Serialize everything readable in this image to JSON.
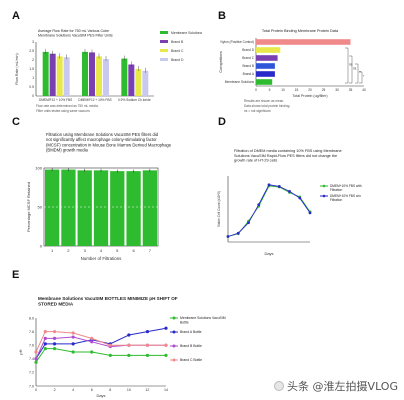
{
  "panels": {
    "A": {
      "label": "A"
    },
    "B": {
      "label": "B"
    },
    "C": {
      "label": "C"
    },
    "D": {
      "label": "D"
    },
    "E": {
      "label": "E"
    }
  },
  "watermark": {
    "text": "头条 @淮左拍摄VLOG"
  },
  "chart_data": [
    {
      "id": "A",
      "type": "bar",
      "title": "Average Flow Rate for 750 mL Various Cube",
      "subtitle": "Membrane Solutions VacuSIM PES Filter Units",
      "ylabel": "Flow Rate (mL/min)",
      "ylim": [
        0,
        3
      ],
      "yticks": [
        "0",
        "0.5",
        "1",
        "1.5",
        "2",
        "2.5",
        "3"
      ],
      "categories": [
        "DMEM/F12 + 10% FBS",
        "DMEM/F12 + 10% FBS",
        "0.9% Sodium Ch.loride"
      ],
      "series": [
        {
          "name": "Membrane Solutions",
          "color": "#2fbb2f",
          "values": [
            2.45,
            2.45,
            2.08
          ]
        },
        {
          "name": "Brand B",
          "color": "#7a3fb0",
          "values": [
            2.35,
            2.42,
            1.75
          ]
        },
        {
          "name": "Brand C",
          "color": "#e8e84a",
          "values": [
            2.2,
            2.2,
            1.5
          ]
        },
        {
          "name": "Brand D",
          "color": "#c9c9f0",
          "values": [
            2.15,
            2.05,
            1.4
          ]
        }
      ],
      "notes": [
        "Flow rate was determined as 750 mL media.",
        "Filter units tested using same vacuum."
      ]
    },
    {
      "id": "B",
      "type": "bar",
      "orientation": "horizontal",
      "title": "Total Protein Binding Membrane Protein Data",
      "xlabel": "Total Protein (ug/filter)",
      "ylabel": "Competitors",
      "xlim": [
        0,
        40
      ],
      "xticks": [
        "0",
        "5",
        "10",
        "15",
        "20",
        "25",
        "30",
        "35",
        "40"
      ],
      "categories": [
        "Nylon (Positive Control)",
        "Brand D",
        "Brand C",
        "Brand B",
        "Brand A",
        "Membrane Solutions"
      ],
      "values": [
        35,
        9,
        8,
        7,
        7,
        6
      ],
      "colors": [
        "#f08a8a",
        "#e8e84a",
        "#7a3fb0",
        "#2f56d9",
        "#2a2acb",
        "#2fbb2f"
      ],
      "annotations": [
        "ns",
        "ns",
        "**",
        "*"
      ],
      "notes": [
        "Results are shown as mean.",
        "Data shows total protein binding.",
        "ns = not significant"
      ]
    },
    {
      "id": "C",
      "type": "bar",
      "title": "Filtration using Membrane Solutions VacuSIM PES filters did not significantly affect macrophage colony-stimulating factor (MCSF) concentration in Mouse Bone Marrow Derived Macrophage (BMDM) growth media",
      "xlabel": "Number of Filtrations",
      "ylabel": "Percentage MCSF Retained",
      "ylim": [
        0,
        100
      ],
      "yticks": [
        "0",
        "50",
        "100"
      ],
      "categories": [
        "1",
        "2",
        "3",
        "4",
        "5",
        "6",
        "7"
      ],
      "values": [
        98,
        98,
        97,
        97,
        96,
        96,
        97
      ],
      "color": "#2fbb2f"
    },
    {
      "id": "D",
      "type": "line",
      "title": "Filtration of DMEM media containing 10% FBS using Membrane Solutions VacuSIM Rapid-Flow PES filters did not change the growth rate of HT-29 cells",
      "xlabel": "Days",
      "ylabel": "Viable Cell Count (x10^5)",
      "ylim": [
        0,
        12
      ],
      "xlim": [
        0,
        8
      ],
      "x": [
        0,
        1,
        2,
        3,
        4,
        5,
        6,
        7,
        8
      ],
      "series": [
        {
          "name": "DMEM+10% FBS with Filtration",
          "color": "#2fbb2f",
          "values": [
            1.0,
            1.5,
            3.8,
            6.5,
            10.2,
            10.0,
            9.0,
            8.2,
            5.5
          ]
        },
        {
          "name": "DMEM+10% FBS w/o Filtration",
          "color": "#2a2acb",
          "values": [
            1.0,
            1.6,
            3.5,
            6.8,
            10.4,
            10.1,
            9.2,
            8.0,
            5.3
          ]
        }
      ]
    },
    {
      "id": "E",
      "type": "line",
      "title": "Membrane Solutions VacuSIM BOTTLES MINIMIZE pH SHIFT OF STORED MEDIA",
      "xlabel": "Days",
      "ylabel": "pH",
      "ylim": [
        7.0,
        8.0
      ],
      "yticks": [
        "7.0",
        "7.2",
        "7.4",
        "7.6",
        "7.8",
        "8.0"
      ],
      "xticks": [
        "0",
        "2",
        "4",
        "6",
        "8",
        "10",
        "12",
        "14"
      ],
      "x": [
        0,
        1,
        2,
        4,
        6,
        8,
        10,
        12,
        14
      ],
      "series": [
        {
          "name": "Membrane Solutions VacuSIM Bottle",
          "color": "#2fbb2f",
          "values": [
            7.35,
            7.55,
            7.55,
            7.5,
            7.5,
            7.45,
            7.45,
            7.45,
            7.45
          ]
        },
        {
          "name": "Brand A Bottle",
          "color": "#2a2acb",
          "values": [
            7.4,
            7.62,
            7.62,
            7.62,
            7.68,
            7.62,
            7.75,
            7.8,
            7.85
          ]
        },
        {
          "name": "Brand B Bottle",
          "color": "#b04bd0",
          "values": [
            7.4,
            7.7,
            7.7,
            7.72,
            7.65,
            7.58,
            7.6,
            7.6,
            7.6
          ]
        },
        {
          "name": "Brand C Bottle",
          "color": "#f08a8a",
          "values": [
            7.5,
            7.8,
            7.8,
            7.78,
            7.7,
            7.6,
            7.6,
            7.6,
            7.6
          ]
        }
      ]
    }
  ]
}
